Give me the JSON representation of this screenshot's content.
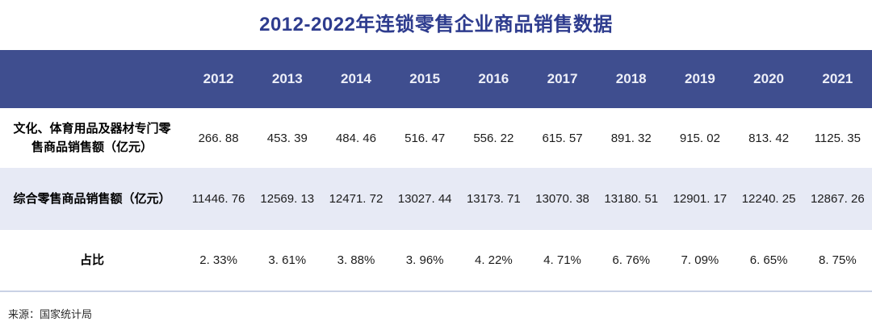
{
  "title": "2012-2022年连锁零售企业商品销售数据",
  "colors": {
    "title_color": "#2e3c8e",
    "header_bg": "#3f4e8f",
    "header_text": "#edeff8",
    "alt_row_bg": "#e7eaf5",
    "separator": "#c9d1e5"
  },
  "header": {
    "years": [
      "2012",
      "2013",
      "2014",
      "2015",
      "2016",
      "2017",
      "2018",
      "2019",
      "2020",
      "2021"
    ]
  },
  "rows": [
    {
      "label": "文化、体育用品及器材专门零售商品销售额（亿元）",
      "values": [
        "266. 88",
        "453. 39",
        "484. 46",
        "516. 47",
        "556. 22",
        "615. 57",
        "891. 32",
        "915. 02",
        "813. 42",
        "1125. 35"
      ]
    },
    {
      "label": "综合零售商品销售额（亿元）",
      "values": [
        "11446. 76",
        "12569. 13",
        "12471. 72",
        "13027. 44",
        "13173. 71",
        "13070. 38",
        "13180. 51",
        "12901. 17",
        "12240. 25",
        "12867. 26"
      ]
    },
    {
      "label": "占比",
      "values": [
        "2. 33%",
        "3. 61%",
        "3. 88%",
        "3. 96%",
        "4. 22%",
        "4. 71%",
        "6. 76%",
        "7. 09%",
        "6. 65%",
        "8. 75%"
      ]
    }
  ],
  "footer": {
    "source": "来源：国家统计局"
  },
  "chart_data": {
    "type": "table",
    "title": "2012-2022年连锁零售企业商品销售数据",
    "categories": [
      2012,
      2013,
      2014,
      2015,
      2016,
      2017,
      2018,
      2019,
      2020,
      2021
    ],
    "series": [
      {
        "name": "文化、体育用品及器材专门零售商品销售额（亿元）",
        "values": [
          266.88,
          453.39,
          484.46,
          516.47,
          556.22,
          615.57,
          891.32,
          915.02,
          813.42,
          1125.35
        ]
      },
      {
        "name": "综合零售商品销售额（亿元）",
        "values": [
          11446.76,
          12569.13,
          12471.72,
          13027.44,
          13173.71,
          13070.38,
          13180.51,
          12901.17,
          12240.25,
          12867.26
        ]
      },
      {
        "name": "占比（%）",
        "values": [
          2.33,
          3.61,
          3.88,
          3.96,
          4.22,
          4.71,
          6.76,
          7.09,
          6.65,
          8.75
        ]
      }
    ],
    "source": "国家统计局"
  }
}
